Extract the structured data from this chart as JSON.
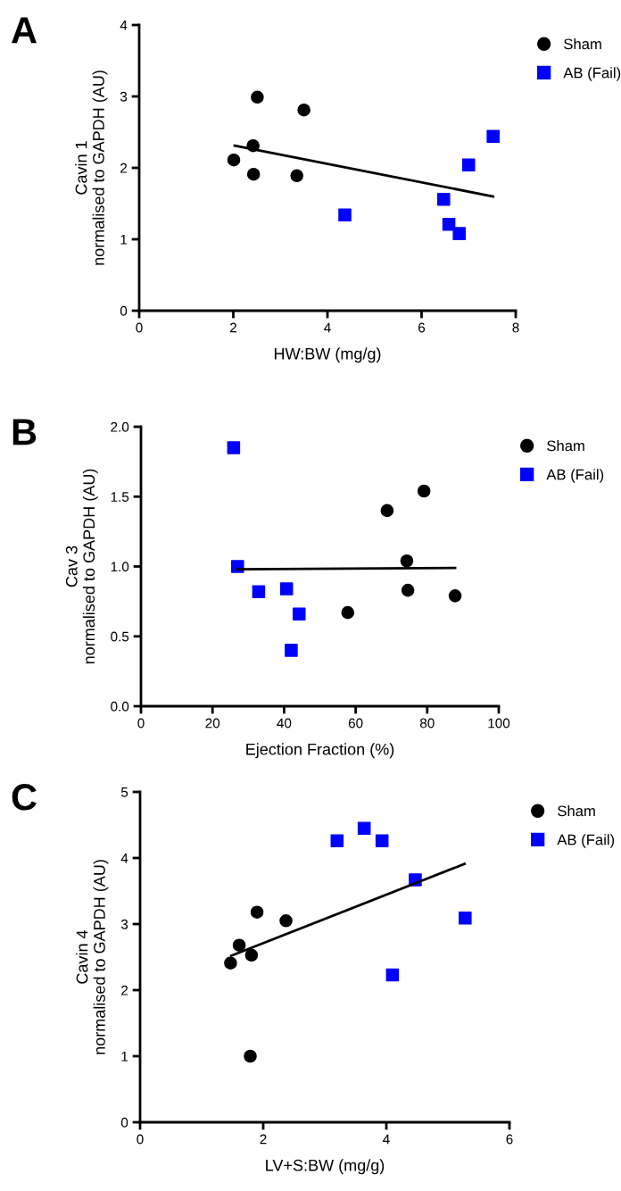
{
  "chart_data": [
    {
      "type": "scatter",
      "title": "A",
      "xlabel": "HW:BW (mg/g)",
      "ylabel": "Cavin 1\nnormalised to GAPDH (AU)",
      "xlim": [
        0,
        8
      ],
      "xticks": [
        0,
        2,
        4,
        6,
        8
      ],
      "ylim": [
        0,
        4
      ],
      "yticks": [
        0,
        1,
        2,
        3,
        4
      ],
      "legend": "top right",
      "grid": false,
      "series": [
        {
          "name": "Sham",
          "color": "#000000",
          "marker": "circle",
          "x": [
            2.01,
            2.51,
            2.42,
            2.43,
            3.5,
            3.35
          ],
          "values": [
            2.11,
            2.99,
            2.31,
            1.91,
            2.81,
            1.89
          ]
        },
        {
          "name": "AB (Fail)",
          "color": "#0000ff",
          "marker": "square",
          "x": [
            4.37,
            6.47,
            6.58,
            6.8,
            7.0,
            7.52
          ],
          "values": [
            1.34,
            1.56,
            1.21,
            1.08,
            2.04,
            2.44
          ]
        },
        {
          "type": "line",
          "color": "#000000",
          "x": [
            2.03,
            7.52
          ],
          "values": [
            2.31,
            1.6
          ]
        }
      ]
    },
    {
      "type": "scatter",
      "title": "B",
      "xlabel": "Ejection Fraction (%)",
      "ylabel": "Cav 3\nnormalised to GAPDH (AU)",
      "xlim": [
        0,
        100
      ],
      "xticks": [
        0,
        20,
        40,
        60,
        80,
        100
      ],
      "ylim": [
        0,
        2
      ],
      "yticks": [
        {
          "value": 0,
          "label": "0.0"
        },
        {
          "value": 0.5,
          "label": "0.5"
        },
        {
          "value": 1,
          "label": "1.0"
        },
        {
          "value": 1.5,
          "label": "1.5"
        },
        {
          "value": 2,
          "label": "2.0"
        }
      ],
      "legend": "top right",
      "grid": false,
      "series": [
        {
          "name": "Sham",
          "color": "#000000",
          "marker": "circle",
          "x": [
            57.8,
            68.8,
            79.1,
            74.3,
            74.6,
            87.8
          ],
          "values": [
            0.67,
            1.4,
            1.54,
            1.04,
            0.83,
            0.79
          ]
        },
        {
          "name": "AB (Fail)",
          "color": "#0000ff",
          "marker": "square",
          "x": [
            25.9,
            27.0,
            32.9,
            40.7,
            44.2,
            42.0
          ],
          "values": [
            1.85,
            1.0,
            0.82,
            0.84,
            0.66,
            0.4
          ]
        },
        {
          "type": "line",
          "color": "#000000",
          "x": [
            27.0,
            87.8
          ],
          "values": [
            0.98,
            0.99
          ]
        }
      ]
    },
    {
      "type": "scatter",
      "title": "C",
      "xlabel": "LV+S:BW (mg/g)",
      "ylabel": "Cavin 4\nnormalised to GAPDH (AU)",
      "xlim": [
        0,
        6
      ],
      "xticks": [
        0,
        2,
        4,
        6
      ],
      "ylim": [
        0,
        5
      ],
      "yticks": [
        0,
        1,
        2,
        3,
        4,
        5
      ],
      "legend": "top right",
      "grid": false,
      "series": [
        {
          "name": "Sham",
          "color": "#000000",
          "marker": "circle",
          "x": [
            1.47,
            1.61,
            1.81,
            1.9,
            2.37,
            1.79
          ],
          "values": [
            2.41,
            2.68,
            2.53,
            3.18,
            3.05,
            1.0
          ]
        },
        {
          "name": "AB (Fail)",
          "color": "#0000ff",
          "marker": "square",
          "x": [
            3.2,
            3.64,
            3.93,
            4.1,
            4.47,
            5.28
          ],
          "values": [
            4.26,
            4.45,
            4.26,
            2.23,
            3.67,
            3.09
          ]
        },
        {
          "type": "line",
          "color": "#000000",
          "x": [
            1.48,
            5.27
          ],
          "values": [
            2.52,
            3.91
          ]
        }
      ]
    }
  ]
}
